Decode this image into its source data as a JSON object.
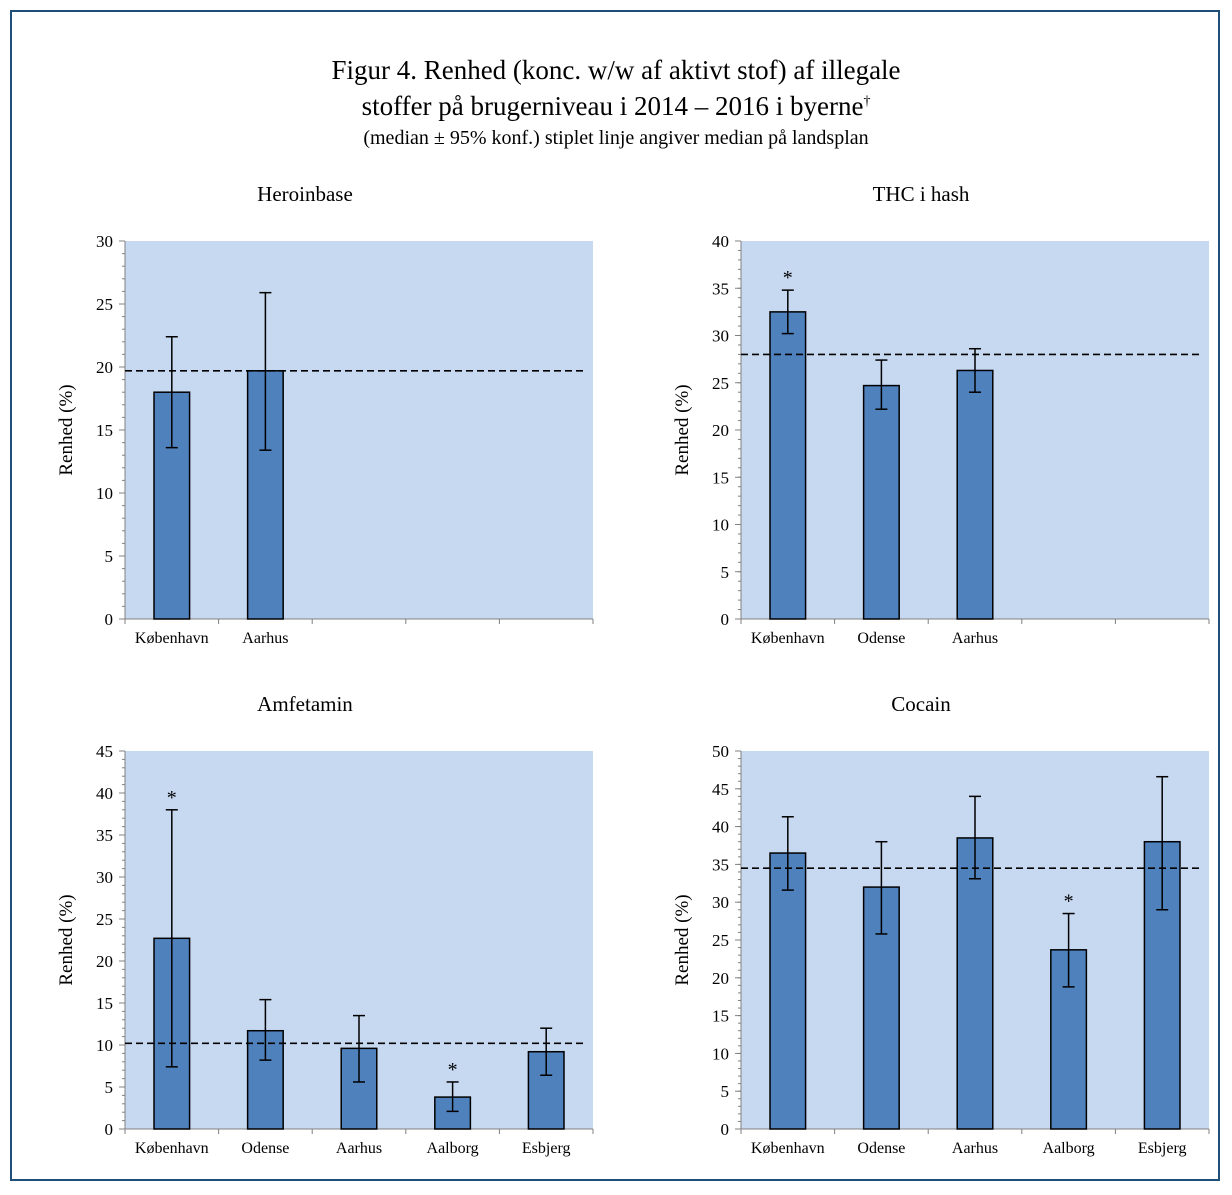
{
  "figure": {
    "title_line1": "Figur 4. Renhed (konc. w/w af aktivt stof) af illegale",
    "title_line2": "stoffer på brugerniveau i 2014 – 2016 i byerne",
    "title_dagger": "†",
    "subtitle": "(median ± 95% konf.) stiplet linje angiver median på landsplan"
  },
  "colors": {
    "plot_background": "#c6d9f1",
    "bar_fill": "#4f81bd",
    "bar_stroke": "#000000",
    "frame": "#1f4e79"
  },
  "chart_data": [
    {
      "type": "bar",
      "title": "Heroinbase",
      "ylabel": "Renhed (%)",
      "ylim": [
        0,
        30
      ],
      "ytick_step": 5,
      "categories": [
        "København",
        "Aarhus"
      ],
      "slot_count": 5,
      "values": [
        18.0,
        19.7
      ],
      "err_low": [
        13.6,
        13.4
      ],
      "err_high": [
        22.4,
        25.9
      ],
      "significant": [
        false,
        false
      ],
      "national_median": 19.7
    },
    {
      "type": "bar",
      "title": "THC i hash",
      "ylabel": "Renhed (%)",
      "ylim": [
        0,
        40
      ],
      "ytick_step": 5,
      "categories": [
        "København",
        "Odense",
        "Aarhus"
      ],
      "slot_count": 5,
      "values": [
        32.5,
        24.7,
        26.3
      ],
      "err_low": [
        30.2,
        22.2,
        24.0
      ],
      "err_high": [
        34.8,
        27.4,
        28.6
      ],
      "significant": [
        true,
        false,
        false
      ],
      "national_median": 28.0
    },
    {
      "type": "bar",
      "title": "Amfetamin",
      "ylabel": "Renhed (%)",
      "ylim": [
        0,
        45
      ],
      "ytick_step": 5,
      "categories": [
        "København",
        "Odense",
        "Aarhus",
        "Aalborg",
        "Esbjerg"
      ],
      "slot_count": 5,
      "values": [
        22.7,
        11.7,
        9.6,
        3.8,
        9.2
      ],
      "err_low": [
        7.4,
        8.2,
        5.6,
        2.1,
        6.4
      ],
      "err_high": [
        38.0,
        15.4,
        13.5,
        5.6,
        12.0
      ],
      "significant": [
        true,
        false,
        false,
        true,
        false
      ],
      "national_median": 10.2
    },
    {
      "type": "bar",
      "title": "Cocain",
      "ylabel": "Renhed (%)",
      "ylim": [
        0,
        50
      ],
      "ytick_step": 5,
      "categories": [
        "København",
        "Odense",
        "Aarhus",
        "Aalborg",
        "Esbjerg"
      ],
      "slot_count": 5,
      "values": [
        36.5,
        32.0,
        38.5,
        23.7,
        38.0
      ],
      "err_low": [
        31.6,
        25.8,
        33.1,
        18.8,
        29.0
      ],
      "err_high": [
        41.3,
        38.0,
        44.0,
        28.5,
        46.6
      ],
      "significant": [
        false,
        false,
        false,
        true,
        false
      ],
      "national_median": 34.5
    }
  ],
  "significance_marker": "*"
}
